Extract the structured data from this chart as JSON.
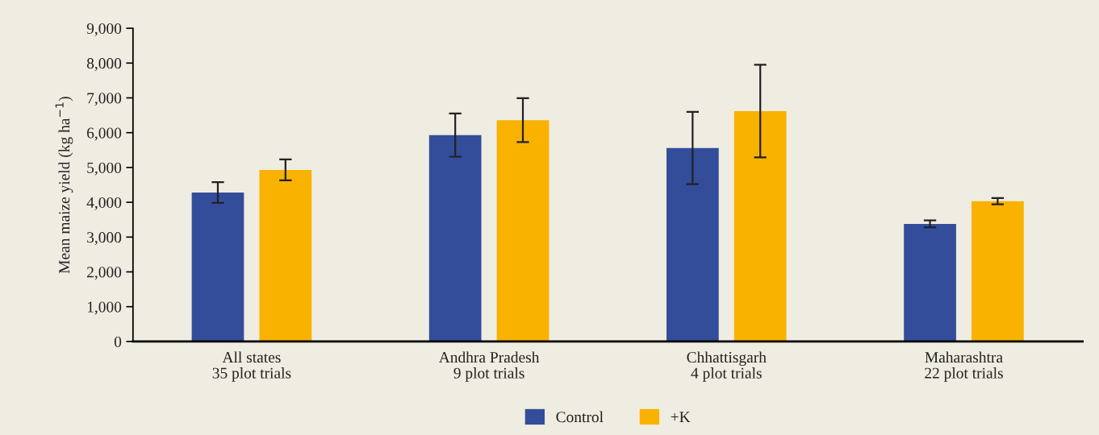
{
  "chart_data": {
    "type": "bar",
    "ylabel": "Mean maize yield (kg ha$^{−1}$)",
    "categories": [
      "All states\n35 plot trials",
      "Andhra Pradesh\n9 plot trials",
      "Chhattisgarh\n4 plot trials",
      "Maharashtra\n22 plot trials"
    ],
    "series": [
      {
        "name": "Control",
        "color": "#334d9b",
        "values": [
          4280,
          5930,
          5560,
          3380
        ],
        "errors": [
          300,
          620,
          1040,
          100
        ]
      },
      {
        "name": "+K",
        "color": "#f9b200",
        "values": [
          4930,
          6360,
          6620,
          4030
        ],
        "errors": [
          300,
          630,
          1330,
          90
        ]
      }
    ],
    "ylim": [
      0,
      9000
    ],
    "yticks": [
      0,
      {
        "value": 1000,
        "label": "1,000"
      },
      {
        "value": 2000,
        "label": "2,000"
      },
      {
        "value": 3000,
        "label": "3,000"
      },
      {
        "value": 4000,
        "label": "4,000"
      },
      {
        "value": 5000,
        "label": "5,000"
      },
      {
        "value": 6000,
        "label": "6,000"
      },
      {
        "value": 7000,
        "label": "7,000"
      },
      {
        "value": 8000,
        "label": "8,000"
      },
      {
        "value": 9000,
        "label": "9,000"
      }
    ],
    "legend": "bottom"
  }
}
